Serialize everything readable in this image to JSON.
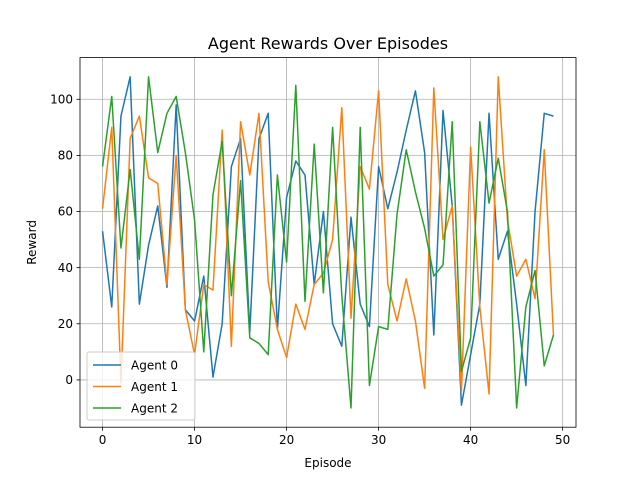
{
  "chart_data": {
    "type": "line",
    "title": "Agent Rewards Over Episodes",
    "xlabel": "Episode",
    "ylabel": "Reward",
    "xlim": [
      -2.45,
      51.45
    ],
    "ylim": [
      -16.85,
      114.85
    ],
    "xticks": [
      0,
      10,
      20,
      30,
      40,
      50
    ],
    "yticks": [
      0,
      20,
      40,
      60,
      80,
      100
    ],
    "grid": true,
    "legend_position": "lower left",
    "x": [
      0,
      1,
      2,
      3,
      4,
      5,
      6,
      7,
      8,
      9,
      10,
      11,
      12,
      13,
      14,
      15,
      16,
      17,
      18,
      19,
      20,
      21,
      22,
      23,
      24,
      25,
      26,
      27,
      28,
      29,
      30,
      31,
      32,
      33,
      34,
      35,
      36,
      37,
      38,
      39,
      40,
      41,
      42,
      43,
      44,
      45,
      46,
      47,
      48,
      49
    ],
    "series": [
      {
        "name": "Agent 0",
        "color": "#1f77b4",
        "values": [
          53,
          26,
          94,
          108,
          27,
          48,
          62,
          33,
          98,
          25,
          21,
          37,
          1,
          20,
          76,
          86,
          17,
          86,
          95,
          18,
          65,
          78,
          73,
          34,
          60,
          20,
          12,
          58,
          27,
          19,
          76,
          61,
          74,
          89,
          103,
          81,
          16,
          96,
          62,
          -9,
          9,
          27,
          95,
          43,
          53,
          27,
          -2,
          60,
          95,
          94
        ]
      },
      {
        "name": "Agent 1",
        "color": "#ff7f0e",
        "values": [
          61,
          90,
          -1,
          86,
          94,
          72,
          70,
          34,
          80,
          25,
          9,
          34,
          32,
          89,
          12,
          92,
          73,
          95,
          35,
          18,
          8,
          27,
          18,
          34,
          38,
          50,
          97,
          22,
          76,
          68,
          103,
          34,
          21,
          36,
          21,
          -3,
          104,
          50,
          62,
          -4,
          83,
          26,
          -5,
          108,
          57,
          37,
          43,
          29,
          82,
          16
        ]
      },
      {
        "name": "Agent 2",
        "color": "#2ca02c",
        "values": [
          76,
          101,
          47,
          75,
          43,
          108,
          81,
          95,
          101,
          81,
          57,
          10,
          66,
          85,
          30,
          71,
          15,
          13,
          9,
          73,
          42,
          105,
          28,
          84,
          31,
          90,
          30,
          -10,
          90,
          -2,
          19,
          18,
          59,
          82,
          67,
          54,
          37,
          41,
          92,
          3,
          15,
          92,
          63,
          79,
          60,
          -10,
          26,
          39,
          5,
          16
        ]
      }
    ]
  }
}
